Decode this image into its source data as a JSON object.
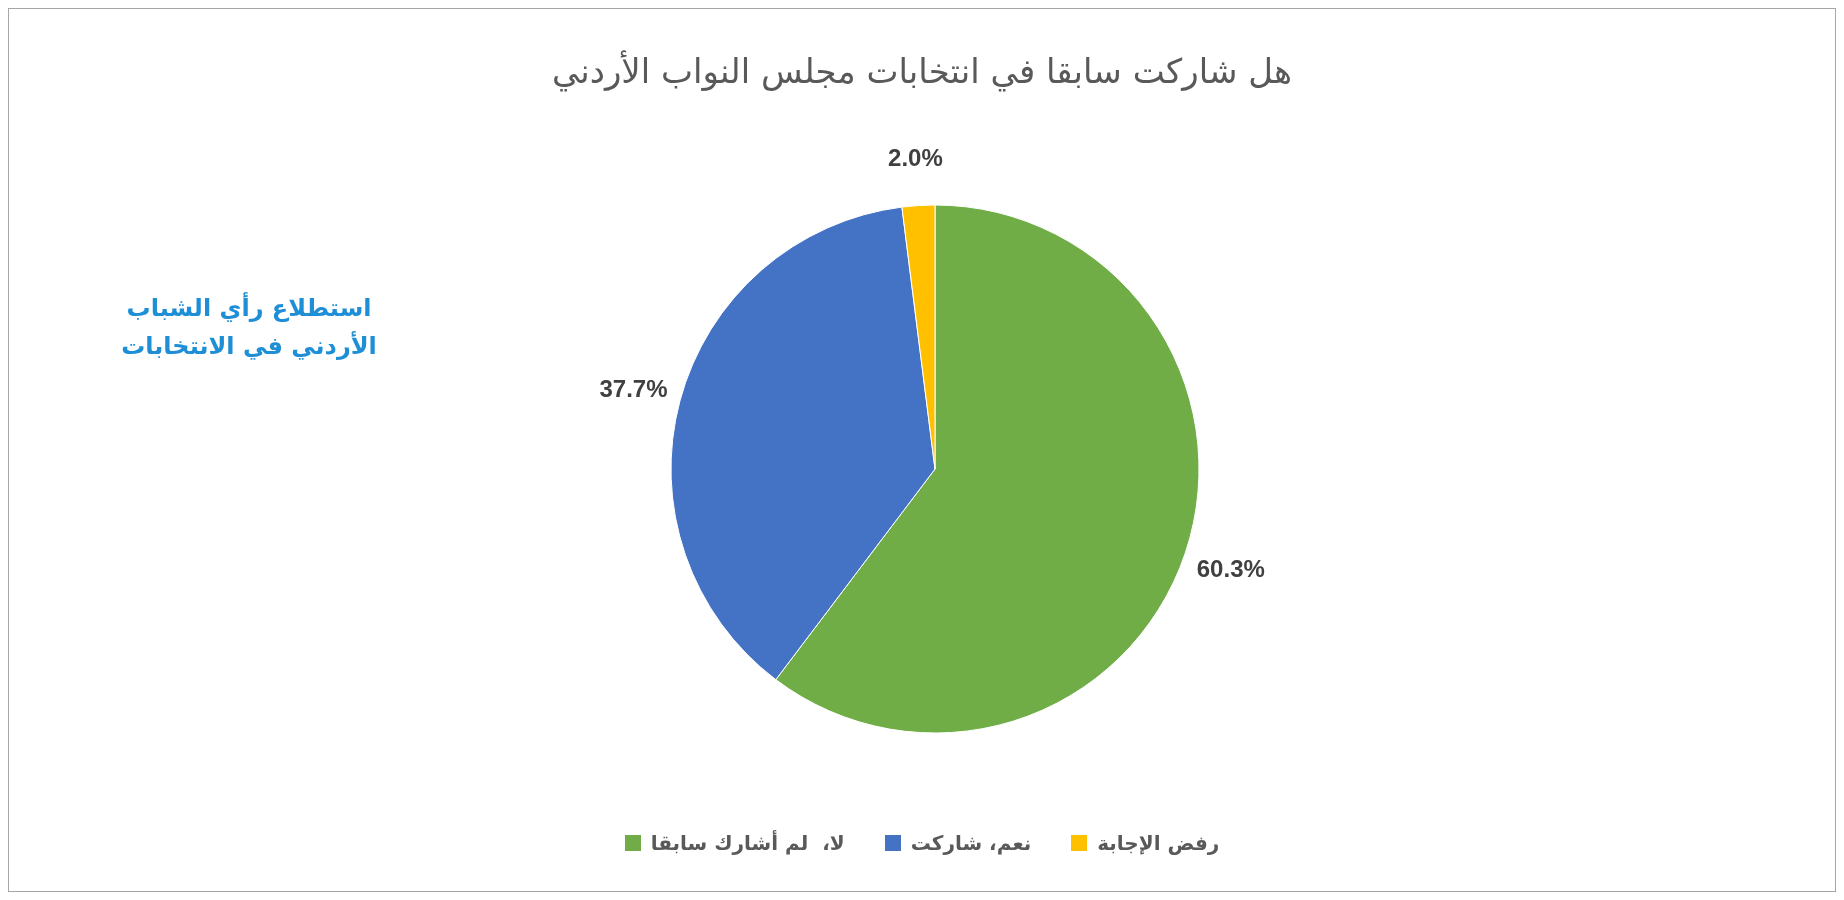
{
  "chart_data": {
    "type": "pie",
    "title": "هل شاركت سابقا في انتخابات مجلس النواب الأردني",
    "annotations": [
      "استطلاع رأي الشباب الأردني في الانتخابات"
    ],
    "categories": [
      "لا،  لم أشارك سابقا",
      "نعم، شاركت",
      "رفض الإجابة"
    ],
    "values": [
      60.3,
      37.7,
      2.0
    ],
    "value_labels": [
      "60.3%",
      "37.7%",
      "2.0%"
    ],
    "colors": [
      "#70ad47",
      "#4472c4",
      "#ffc000"
    ],
    "legend": "bottom"
  }
}
